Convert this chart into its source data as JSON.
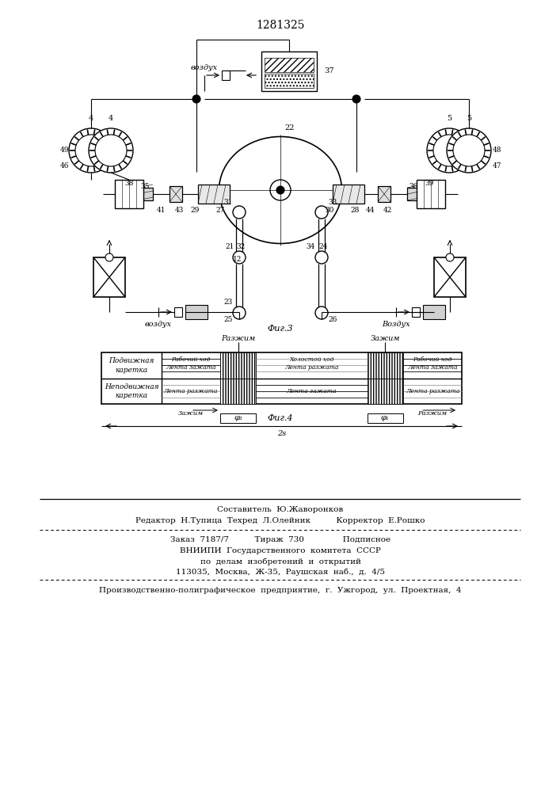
{
  "title": "1281325",
  "title_fontsize": 10,
  "background_color": "#ffffff",
  "fig3_label": "Фиг.3",
  "fig4_label": "Фиг.4",
  "footer_lines": [
    "Составитель  Ю.Жаворонков",
    "Редактор  Н.Тупица  Техред  Л.Олейник          Корректор  Е.Рошко",
    "Заказ  7187/7          Тираж  730               Подписное",
    "ВНИИПИ  Государственного  комитета  СССР",
    "по  делам  изобретений  и  открытий",
    "113035,  Москва,  Ж-35,  Раушская  наб.,  д.  4/5",
    "Производственно-полиграфическое  предприятие,  г.  Ужгород,  ул.  Проектная,  4"
  ]
}
